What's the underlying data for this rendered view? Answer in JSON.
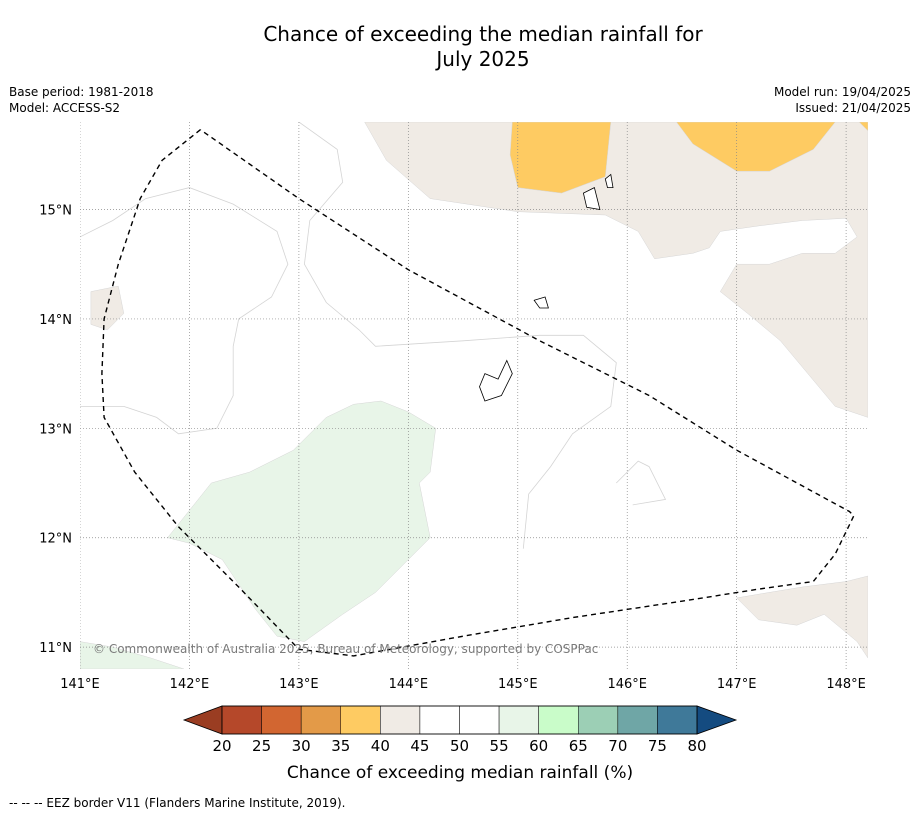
{
  "title": {
    "line1": "Chance of exceeding the median rainfall for",
    "line2": "July 2025"
  },
  "meta_left": {
    "base_period": "Base period: 1981-2018",
    "model": "Model: ACCESS-S2"
  },
  "meta_right": {
    "model_run": "Model run: 19/04/2025",
    "issued": "Issued: 21/04/2025"
  },
  "map": {
    "lon_range": [
      141.0,
      148.2
    ],
    "lat_range": [
      10.8,
      15.8
    ],
    "lon_ticks": [
      {
        "value": 141,
        "label": "141°E"
      },
      {
        "value": 142,
        "label": "142°E"
      },
      {
        "value": 143,
        "label": "143°E"
      },
      {
        "value": 144,
        "label": "144°E"
      },
      {
        "value": 145,
        "label": "145°E"
      },
      {
        "value": 146,
        "label": "146°E"
      },
      {
        "value": 147,
        "label": "147°E"
      },
      {
        "value": 148,
        "label": "148°E"
      }
    ],
    "lat_ticks": [
      {
        "value": 15,
        "label": "15°N"
      },
      {
        "value": 14,
        "label": "14°N"
      },
      {
        "value": 13,
        "label": "13°N"
      },
      {
        "value": 12,
        "label": "12°N"
      },
      {
        "value": 11,
        "label": "11°N"
      }
    ],
    "gridlines": "dotted",
    "copyright": "© Commonwealth of Australia 2025, Bureau of Meteorology, supported by COSPPac",
    "eez_border": [
      [
        142.1,
        15.73
      ],
      [
        141.75,
        15.45
      ],
      [
        141.55,
        15.1
      ],
      [
        141.35,
        14.5
      ],
      [
        141.22,
        14.0
      ],
      [
        141.2,
        13.5
      ],
      [
        141.22,
        13.1
      ],
      [
        141.5,
        12.6
      ],
      [
        141.9,
        12.1
      ],
      [
        142.45,
        11.55
      ],
      [
        143.0,
        10.98
      ],
      [
        143.5,
        10.92
      ],
      [
        144.5,
        11.1
      ],
      [
        145.5,
        11.27
      ],
      [
        146.5,
        11.42
      ],
      [
        147.2,
        11.53
      ],
      [
        147.7,
        11.6
      ],
      [
        147.9,
        11.85
      ],
      [
        148.07,
        12.2
      ],
      [
        148.03,
        12.24
      ],
      [
        147.0,
        12.8
      ],
      [
        146.2,
        13.3
      ],
      [
        145.2,
        13.8
      ],
      [
        144.0,
        14.45
      ],
      [
        143.0,
        15.1
      ],
      [
        142.1,
        15.73
      ]
    ],
    "regions": [
      {
        "category": "40-45",
        "color": "#f0ebe5",
        "points": [
          [
            143.6,
            15.8
          ],
          [
            143.8,
            15.45
          ],
          [
            144.2,
            15.1
          ],
          [
            145.0,
            14.98
          ],
          [
            145.8,
            14.95
          ],
          [
            146.1,
            14.8
          ],
          [
            146.25,
            14.55
          ],
          [
            146.6,
            14.6
          ],
          [
            146.75,
            14.65
          ],
          [
            146.85,
            14.8
          ],
          [
            147.2,
            14.85
          ],
          [
            147.6,
            14.9
          ],
          [
            148.0,
            14.92
          ],
          [
            148.1,
            14.75
          ],
          [
            147.9,
            14.6
          ],
          [
            147.6,
            14.6
          ],
          [
            147.3,
            14.5
          ],
          [
            147.0,
            14.5
          ],
          [
            146.85,
            14.25
          ],
          [
            147.1,
            14.05
          ],
          [
            147.4,
            13.8
          ],
          [
            147.65,
            13.5
          ],
          [
            147.9,
            13.2
          ],
          [
            148.2,
            13.1
          ],
          [
            148.2,
            15.8
          ]
        ]
      },
      {
        "category": "40-45",
        "color": "#f0ebe5",
        "points": [
          [
            147.0,
            11.45
          ],
          [
            147.2,
            11.25
          ],
          [
            147.55,
            11.2
          ],
          [
            147.8,
            11.3
          ],
          [
            148.1,
            11.05
          ],
          [
            148.2,
            10.9
          ],
          [
            148.2,
            11.65
          ],
          [
            148.0,
            11.6
          ],
          [
            147.6,
            11.55
          ],
          [
            147.3,
            11.5
          ]
        ]
      },
      {
        "category": "40-45",
        "color": "#f0ebe5",
        "points": [
          [
            141.1,
            14.25
          ],
          [
            141.35,
            14.3
          ],
          [
            141.4,
            14.05
          ],
          [
            141.25,
            13.9
          ],
          [
            141.1,
            13.95
          ]
        ]
      },
      {
        "category": "35-40",
        "color": "#fecb62",
        "points": [
          [
            144.95,
            15.8
          ],
          [
            144.93,
            15.5
          ],
          [
            145.0,
            15.2
          ],
          [
            145.4,
            15.15
          ],
          [
            145.8,
            15.3
          ],
          [
            145.85,
            15.8
          ]
        ]
      },
      {
        "category": "35-40",
        "color": "#fecb62",
        "points": [
          [
            146.45,
            15.8
          ],
          [
            146.6,
            15.6
          ],
          [
            147.0,
            15.35
          ],
          [
            147.3,
            15.35
          ],
          [
            147.7,
            15.55
          ],
          [
            147.9,
            15.8
          ]
        ]
      },
      {
        "category": "35-40",
        "color": "#fecb62",
        "points": [
          [
            148.12,
            15.8
          ],
          [
            148.2,
            15.8
          ],
          [
            148.2,
            15.72
          ]
        ]
      },
      {
        "category": "55-60",
        "color": "#e8f5e8",
        "points": [
          [
            141.8,
            12.0
          ],
          [
            142.2,
            12.5
          ],
          [
            142.55,
            12.6
          ],
          [
            142.95,
            12.8
          ],
          [
            143.25,
            13.1
          ],
          [
            143.5,
            13.22
          ],
          [
            143.75,
            13.25
          ],
          [
            144.0,
            13.15
          ],
          [
            144.25,
            13.0
          ],
          [
            144.2,
            12.6
          ],
          [
            144.1,
            12.5
          ],
          [
            144.2,
            12.0
          ],
          [
            144.0,
            11.8
          ],
          [
            143.7,
            11.5
          ],
          [
            143.4,
            11.3
          ],
          [
            143.05,
            11.05
          ],
          [
            142.8,
            11.1
          ],
          [
            142.6,
            11.35
          ],
          [
            142.3,
            11.8
          ],
          [
            142.0,
            11.95
          ]
        ]
      },
      {
        "category": "55-60",
        "color": "#e8f5e8",
        "points": [
          [
            141.0,
            11.05
          ],
          [
            141.3,
            11.0
          ],
          [
            141.65,
            10.9
          ],
          [
            141.95,
            10.8
          ],
          [
            141.0,
            10.8
          ]
        ]
      }
    ],
    "contours": [
      [
        [
          141.0,
          14.75
        ],
        [
          141.3,
          14.9
        ],
        [
          141.6,
          15.1
        ],
        [
          142.0,
          15.2
        ],
        [
          142.4,
          15.05
        ],
        [
          142.8,
          14.8
        ],
        [
          142.9,
          14.5
        ],
        [
          142.75,
          14.2
        ],
        [
          142.45,
          14.0
        ],
        [
          142.4,
          13.75
        ],
        [
          142.4,
          13.3
        ],
        [
          142.25,
          13.0
        ],
        [
          141.9,
          12.95
        ],
        [
          141.7,
          13.1
        ],
        [
          141.4,
          13.2
        ],
        [
          141.0,
          13.2
        ]
      ],
      [
        [
          143.0,
          15.8
        ],
        [
          143.35,
          15.55
        ],
        [
          143.4,
          15.25
        ],
        [
          143.1,
          14.9
        ],
        [
          143.05,
          14.5
        ],
        [
          143.25,
          14.15
        ],
        [
          143.55,
          13.9
        ],
        [
          143.7,
          13.75
        ],
        [
          144.5,
          13.8
        ],
        [
          145.2,
          13.85
        ],
        [
          145.6,
          13.85
        ],
        [
          145.9,
          13.6
        ],
        [
          145.85,
          13.2
        ],
        [
          145.5,
          12.95
        ],
        [
          145.3,
          12.65
        ],
        [
          145.1,
          12.4
        ],
        [
          145.05,
          11.9
        ]
      ],
      [
        [
          145.9,
          12.5
        ],
        [
          146.1,
          12.7
        ],
        [
          146.2,
          12.65
        ],
        [
          146.35,
          12.35
        ],
        [
          146.05,
          12.3
        ]
      ]
    ],
    "islands": [
      [
        [
          144.7,
          13.5
        ],
        [
          144.82,
          13.45
        ],
        [
          144.9,
          13.62
        ],
        [
          144.95,
          13.5
        ],
        [
          144.85,
          13.3
        ],
        [
          144.7,
          13.25
        ],
        [
          144.65,
          13.38
        ]
      ],
      [
        [
          145.15,
          14.17
        ],
        [
          145.25,
          14.2
        ],
        [
          145.28,
          14.1
        ],
        [
          145.2,
          14.1
        ]
      ],
      [
        [
          145.6,
          15.15
        ],
        [
          145.7,
          15.2
        ],
        [
          145.75,
          15.0
        ],
        [
          145.63,
          15.02
        ]
      ],
      [
        [
          145.8,
          15.28
        ],
        [
          145.85,
          15.32
        ],
        [
          145.87,
          15.2
        ],
        [
          145.82,
          15.2
        ]
      ]
    ]
  },
  "colorbar": {
    "label": "Chance of exceeding median rainfall (%)",
    "low_color": "#9a3d22",
    "high_color": "#144b80",
    "bins": [
      {
        "from": 20,
        "to": 25,
        "color": "#b5482a"
      },
      {
        "from": 25,
        "to": 30,
        "color": "#d26631"
      },
      {
        "from": 30,
        "to": 35,
        "color": "#e39a48"
      },
      {
        "from": 35,
        "to": 40,
        "color": "#fecb62"
      },
      {
        "from": 40,
        "to": 45,
        "color": "#f0ebe5"
      },
      {
        "from": 45,
        "to": 50,
        "color": "#ffffff"
      },
      {
        "from": 50,
        "to": 55,
        "color": "#ffffff"
      },
      {
        "from": 55,
        "to": 60,
        "color": "#e8f5e8"
      },
      {
        "from": 60,
        "to": 65,
        "color": "#c9fcc9"
      },
      {
        "from": 65,
        "to": 70,
        "color": "#9ccfb5"
      },
      {
        "from": 70,
        "to": 75,
        "color": "#6fa6a6"
      },
      {
        "from": 75,
        "to": 80,
        "color": "#3f7999"
      }
    ],
    "tick_labels": [
      "20",
      "25",
      "30",
      "35",
      "40",
      "45",
      "50",
      "55",
      "60",
      "65",
      "70",
      "75",
      "80"
    ]
  },
  "footnote": "--  --  -- EEZ border V11 (Flanders Marine Institute, 2019)."
}
